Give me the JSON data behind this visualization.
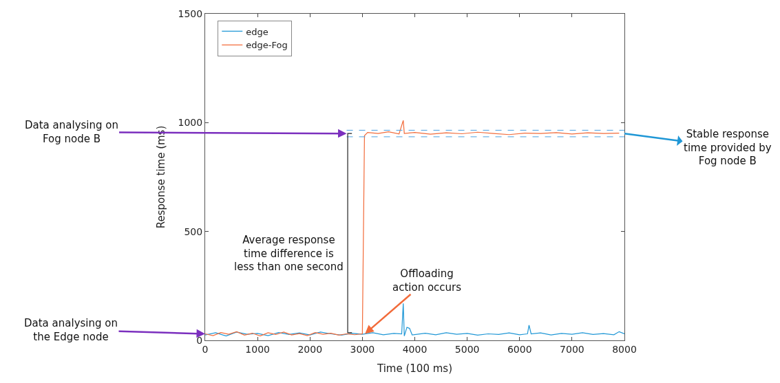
{
  "chart_data": {
    "type": "line",
    "xlabel": "Time (100 ms)",
    "ylabel": "Response time (ms)",
    "xlim": [
      0,
      8000
    ],
    "xticks": [
      0,
      1000,
      2000,
      3000,
      4000,
      5000,
      6000,
      7000,
      8000
    ],
    "ylim": [
      0,
      1500
    ],
    "yticks": [
      0,
      500,
      1000,
      1500
    ],
    "legend": "top left",
    "series": [
      {
        "name": "edge",
        "color": "#1f97d6",
        "x": [
          0,
          200,
          400,
          600,
          800,
          1000,
          1200,
          1400,
          1600,
          1800,
          2000,
          2200,
          2400,
          2600,
          2800,
          3000,
          3200,
          3400,
          3600,
          3750,
          3780,
          3800,
          3850,
          3900,
          3950,
          4200,
          4400,
          4600,
          4800,
          5000,
          5200,
          5400,
          5600,
          5800,
          6000,
          6150,
          6180,
          6220,
          6400,
          6600,
          6800,
          7000,
          7200,
          7400,
          7600,
          7800,
          7900,
          8000
        ],
        "values": [
          25,
          35,
          20,
          38,
          28,
          32,
          22,
          36,
          27,
          34,
          25,
          38,
          30,
          24,
          33,
          28,
          35,
          26,
          32,
          30,
          170,
          20,
          60,
          55,
          25,
          33,
          26,
          35,
          28,
          32,
          24,
          30,
          27,
          34,
          26,
          30,
          70,
          30,
          34,
          25,
          32,
          28,
          35,
          27,
          31,
          26,
          40,
          30
        ]
      },
      {
        "name": "edge-Fog",
        "color": "#f26b3a",
        "x": [
          0,
          150,
          300,
          450,
          600,
          750,
          900,
          1050,
          1200,
          1350,
          1500,
          1650,
          1800,
          1950,
          2100,
          2250,
          2400,
          2550,
          2700,
          2850,
          3000,
          3040,
          3100,
          3300,
          3500,
          3700,
          3780,
          3800,
          4000,
          4300,
          4600,
          4900,
          5200,
          5500,
          5800,
          6100,
          6400,
          6700,
          7000,
          7300,
          7600,
          7900
        ],
        "values": [
          30,
          22,
          36,
          28,
          40,
          24,
          33,
          20,
          35,
          27,
          38,
          25,
          31,
          22,
          36,
          28,
          33,
          24,
          30,
          26,
          30,
          940,
          955,
          950,
          958,
          948,
          1010,
          950,
          955,
          947,
          953,
          949,
          956,
          950,
          945,
          952,
          950,
          954,
          948,
          953,
          950,
          952
        ]
      }
    ],
    "ref_lines": [
      {
        "axis": "y",
        "value": 965,
        "color": "#4a9fe0",
        "line_style": "dashed"
      },
      {
        "axis": "y",
        "value": 935,
        "color": "#4a9fe0",
        "line_style": "dashed"
      }
    ],
    "annotations": [
      {
        "text": "Data analysing on\nFog node B",
        "x": 2700,
        "y": 950
      },
      {
        "text": "Data analysing on\nthe Edge node",
        "x": 0,
        "y": 30
      },
      {
        "text": "Stable response\ntime provided by\nFog node B",
        "x": 8000,
        "y": 950
      },
      "Average response\ntime difference is\nless than one second",
      {
        "text": "Offloading\naction occurs",
        "x": 3050,
        "y": 30
      }
    ]
  }
}
